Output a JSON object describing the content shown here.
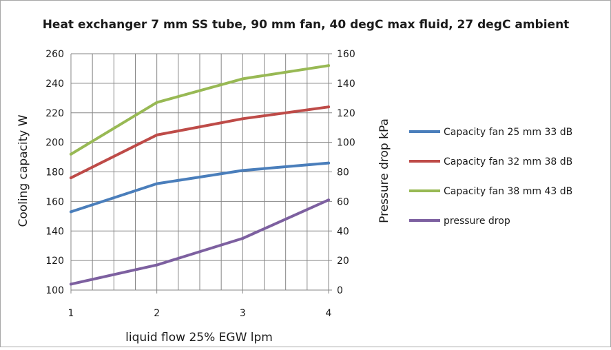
{
  "chart_data": {
    "type": "line",
    "title": "Heat exchanger 7 mm SS tube, 90 mm fan, 40 degC max fluid, 27 degC ambient",
    "xlabel": "liquid flow 25% EGW lpm",
    "ylabel": "Cooling capacity W",
    "y2label": "Pressure drop kPa",
    "x": [
      1,
      2,
      3,
      4
    ],
    "x_ticks": [
      "1",
      "2",
      "3",
      "4"
    ],
    "xlim": [
      1,
      4
    ],
    "ylim": [
      100,
      260
    ],
    "y_ticks": [
      "100",
      "120",
      "140",
      "160",
      "180",
      "200",
      "220",
      "240",
      "260"
    ],
    "y2lim": [
      0,
      160
    ],
    "y2_ticks": [
      "0",
      "20",
      "40",
      "60",
      "80",
      "100",
      "120",
      "140",
      "160"
    ],
    "grid": true,
    "legend_position": "right",
    "series": [
      {
        "name": "Capacity fan 25 mm 33 dB",
        "axis": "left",
        "color": "#4a7ebb",
        "values": [
          153,
          172,
          181,
          186
        ]
      },
      {
        "name": "Capacity fan 32 mm 38 dB",
        "axis": "left",
        "color": "#be4b48",
        "values": [
          176,
          205,
          216,
          224
        ]
      },
      {
        "name": "Capacity fan 38 mm 43 dB",
        "axis": "left",
        "color": "#98b954",
        "values": [
          192,
          227,
          243,
          252
        ]
      },
      {
        "name": "pressure drop",
        "axis": "right",
        "color": "#7d60a0",
        "values": [
          4,
          17,
          35,
          61
        ]
      }
    ]
  }
}
